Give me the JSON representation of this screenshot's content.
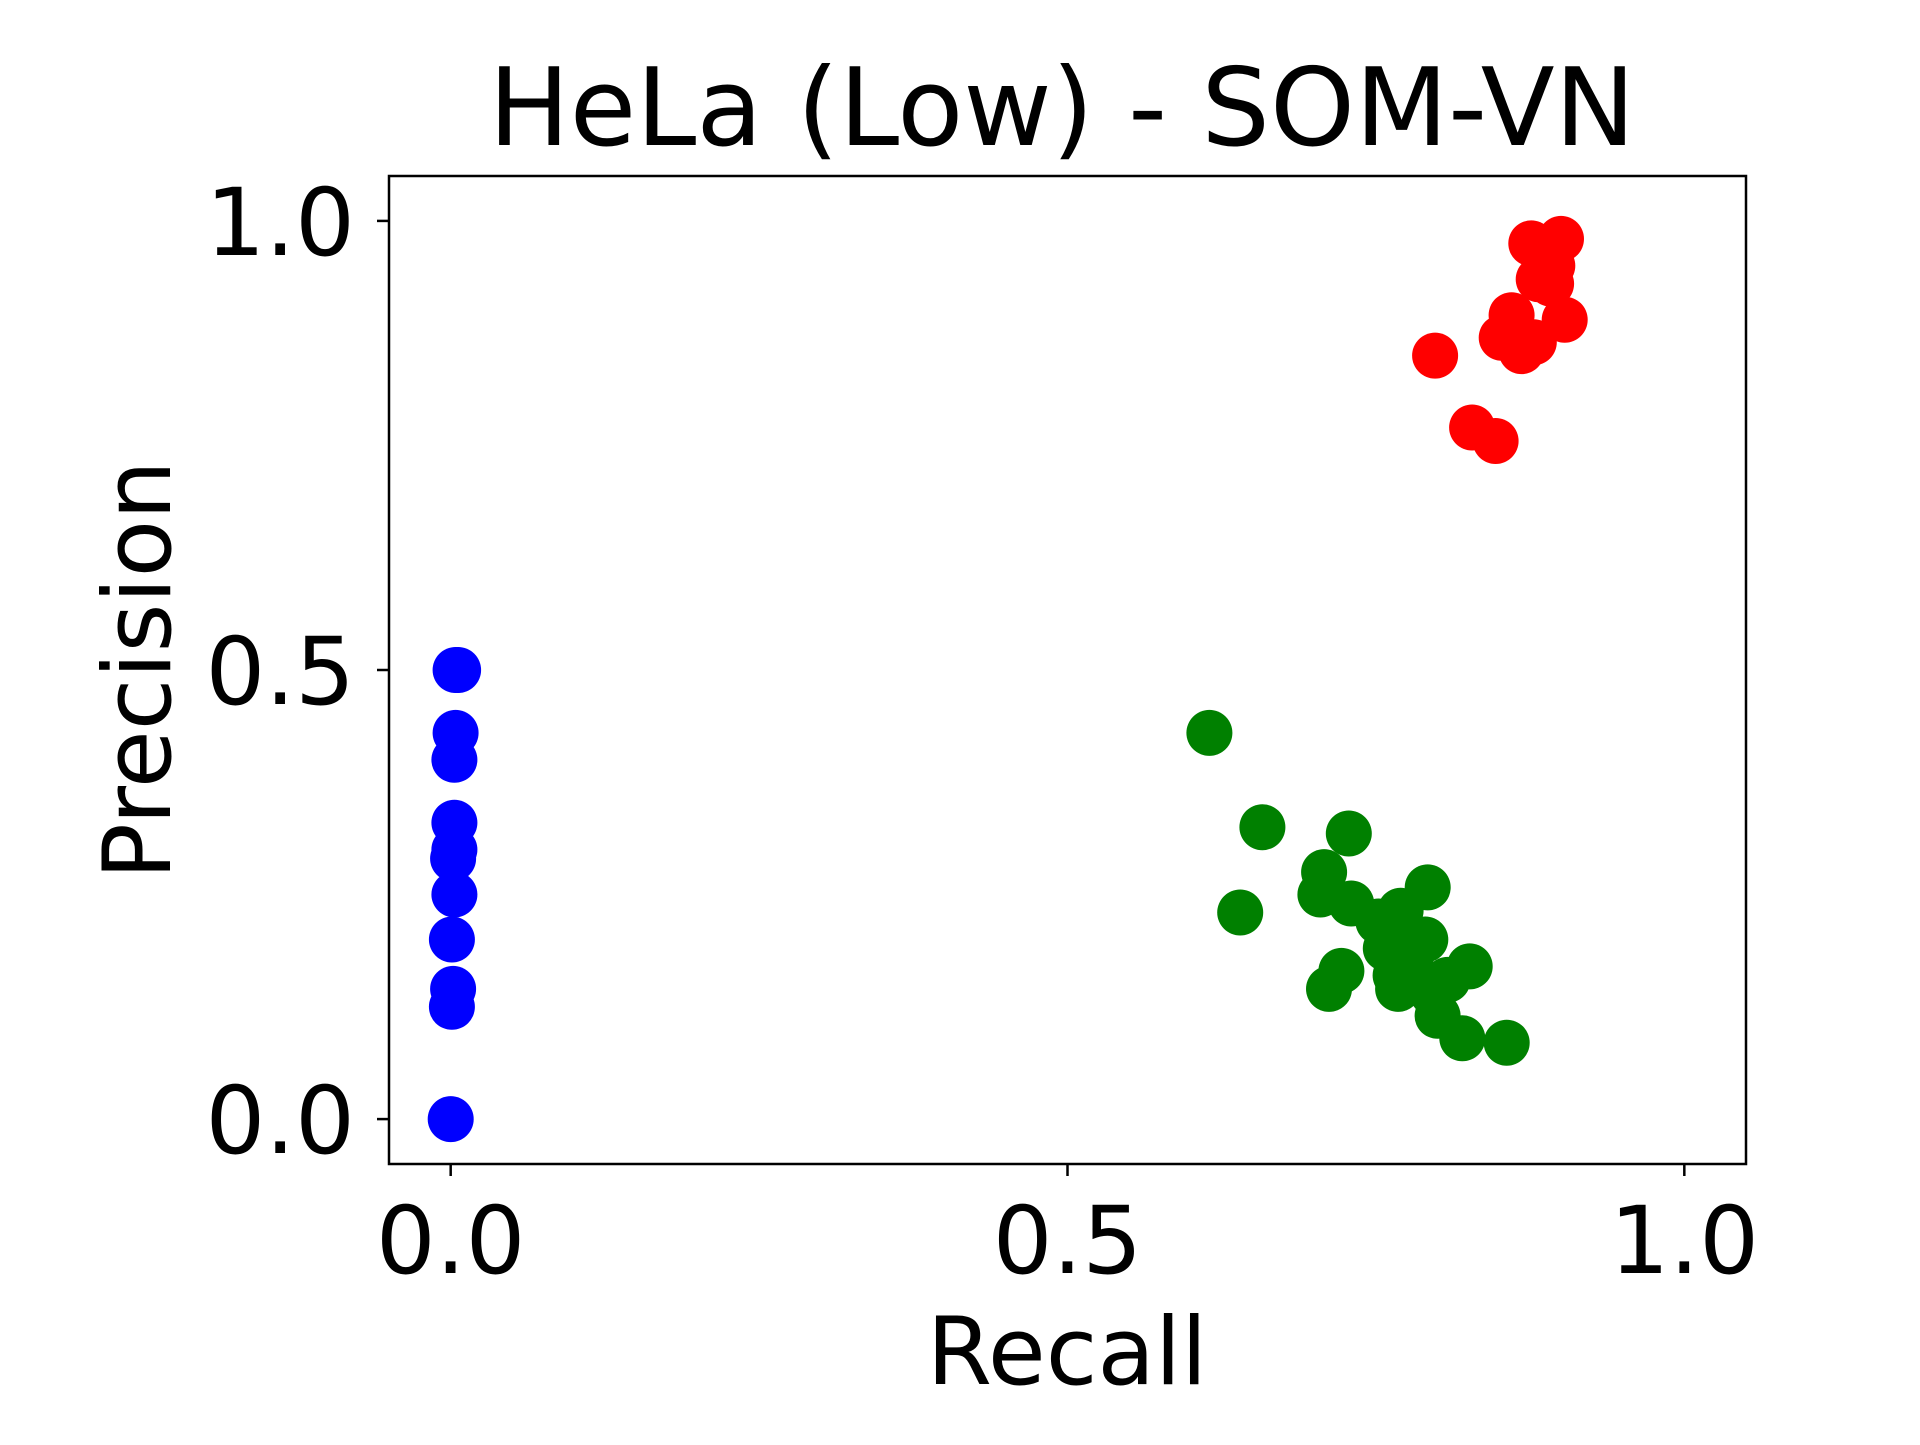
{
  "chart_data": {
    "type": "scatter",
    "title": "HeLa (Low) - SOM-VN",
    "xlabel": "Recall",
    "ylabel": "Precision",
    "xlim": [
      -0.05,
      1.05
    ],
    "ylim": [
      -0.05,
      1.05
    ],
    "xticks": [
      0.0,
      0.5,
      1.0
    ],
    "xtick_labels": [
      "0.0",
      "0.5",
      "1.0"
    ],
    "yticks": [
      0.0,
      0.5,
      1.0
    ],
    "ytick_labels": [
      "0.0",
      "0.5",
      "1.0"
    ],
    "grid": false,
    "series": [
      {
        "color": "#0000ff",
        "points": [
          [
            0.006,
            0.5
          ],
          [
            0.004,
            0.5
          ],
          [
            0.004,
            0.43
          ],
          [
            0.003,
            0.4
          ],
          [
            0.003,
            0.33
          ],
          [
            0.003,
            0.3
          ],
          [
            0.002,
            0.29
          ],
          [
            0.003,
            0.25
          ],
          [
            0.001,
            0.2
          ],
          [
            0.002,
            0.145
          ],
          [
            0.001,
            0.125
          ],
          [
            0.0,
            0.0
          ]
        ]
      },
      {
        "color": "#ff0000",
        "points": [
          [
            0.9,
            0.98
          ],
          [
            0.876,
            0.975
          ],
          [
            0.893,
            0.95
          ],
          [
            0.882,
            0.935
          ],
          [
            0.892,
            0.93
          ],
          [
            0.86,
            0.895
          ],
          [
            0.903,
            0.89
          ],
          [
            0.852,
            0.87
          ],
          [
            0.878,
            0.865
          ],
          [
            0.868,
            0.855
          ],
          [
            0.798,
            0.85
          ],
          [
            0.828,
            0.77
          ],
          [
            0.847,
            0.755
          ]
        ]
      },
      {
        "color": "#008000",
        "points": [
          [
            0.615,
            0.43
          ],
          [
            0.658,
            0.325
          ],
          [
            0.728,
            0.318
          ],
          [
            0.708,
            0.275
          ],
          [
            0.792,
            0.258
          ],
          [
            0.705,
            0.25
          ],
          [
            0.73,
            0.24
          ],
          [
            0.64,
            0.23
          ],
          [
            0.77,
            0.232
          ],
          [
            0.752,
            0.22
          ],
          [
            0.79,
            0.2
          ],
          [
            0.758,
            0.19
          ],
          [
            0.778,
            0.175
          ],
          [
            0.826,
            0.17
          ],
          [
            0.722,
            0.165
          ],
          [
            0.766,
            0.16
          ],
          [
            0.808,
            0.155
          ],
          [
            0.768,
            0.145
          ],
          [
            0.712,
            0.145
          ],
          [
            0.796,
            0.14
          ],
          [
            0.8,
            0.115
          ],
          [
            0.82,
            0.09
          ],
          [
            0.856,
            0.085
          ]
        ]
      }
    ]
  }
}
